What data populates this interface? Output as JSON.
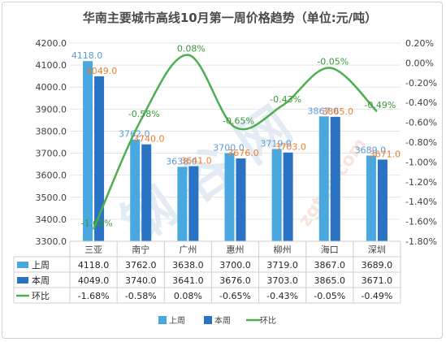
{
  "chart_data": {
    "type": "bar",
    "title": "华南主要城市高线10月第一周价格趋势（单位:元/吨）",
    "categories": [
      "三亚",
      "南宁",
      "广州",
      "惠州",
      "柳州",
      "海口",
      "深圳"
    ],
    "series": [
      {
        "name": "上周",
        "type": "bar",
        "axis": "left",
        "color": "#4aa8e0",
        "values": [
          4118.0,
          3762.0,
          3638.0,
          3700.0,
          3719.0,
          3867.0,
          3689.0
        ],
        "labels": [
          "4118.0",
          "3762.0",
          "3638.0",
          "3700.0",
          "3719.0",
          "3867.0",
          "3689.0"
        ]
      },
      {
        "name": "本周",
        "type": "bar",
        "axis": "left",
        "color": "#2a73c4",
        "values": [
          4049.0,
          3740.0,
          3641.0,
          3676.0,
          3703.0,
          3865.0,
          3671.0
        ],
        "labels": [
          "4049.0",
          "3740.0",
          "3641.0",
          "3676.0",
          "3703.0",
          "3865.0",
          "3671.0"
        ]
      },
      {
        "name": "环比",
        "type": "line",
        "axis": "right",
        "color": "#4caf50",
        "values": [
          -1.68,
          -0.58,
          0.08,
          -0.65,
          -0.43,
          -0.05,
          -0.49
        ],
        "labels": [
          "-1.68%",
          "-0.58%",
          "0.08%",
          "-0.65%",
          "-0.43%",
          "-0.05%",
          "-0.49%"
        ]
      }
    ],
    "left_axis": {
      "min": 3300,
      "max": 4200,
      "step": 100,
      "ticks": [
        "3300.0",
        "3400.0",
        "3500.0",
        "3600.0",
        "3700.0",
        "3800.0",
        "3900.0",
        "4000.0",
        "4100.0",
        "4200.0"
      ]
    },
    "right_axis": {
      "min": -1.8,
      "max": 0.2,
      "step": 0.2,
      "ticks": [
        "-1.80%",
        "-1.60%",
        "-1.40%",
        "-1.20%",
        "-1.00%",
        "-0.80%",
        "-0.60%",
        "-0.40%",
        "-0.20%",
        "0.00%",
        "0.20%"
      ]
    },
    "table": {
      "rows": [
        {
          "name": "上周",
          "cells": [
            "4118.0",
            "3762.0",
            "3638.0",
            "3700.0",
            "3719.0",
            "3867.0",
            "3689.0"
          ]
        },
        {
          "name": "本周",
          "cells": [
            "4049.0",
            "3740.0",
            "3641.0",
            "3676.0",
            "3703.0",
            "3865.0",
            "3671.0"
          ]
        },
        {
          "name": "环比",
          "cells": [
            "-1.68%",
            "-0.58%",
            "0.08%",
            "-0.65%",
            "-0.43%",
            "-0.05%",
            "-0.49%"
          ]
        }
      ]
    },
    "legend": {
      "position": "bottom",
      "items": [
        "上周",
        "本周",
        "环比"
      ]
    },
    "grid": true
  },
  "watermark": {
    "text": "钢 谷 网",
    "site": "zgtcn.com"
  }
}
